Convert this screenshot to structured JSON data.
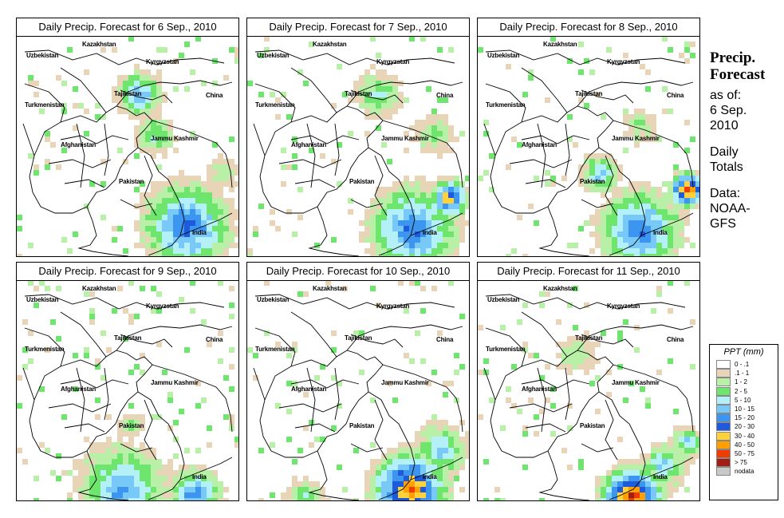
{
  "panels": [
    {
      "title": "Daily Precip. Forecast for  6 Sep., 2010",
      "day": 0
    },
    {
      "title": "Daily Precip. Forecast for  7 Sep., 2010",
      "day": 1
    },
    {
      "title": "Daily Precip. Forecast for  8 Sep., 2010",
      "day": 2
    },
    {
      "title": "Daily Precip. Forecast for  9 Sep., 2010",
      "day": 3
    },
    {
      "title": "Daily Precip. Forecast for  10 Sep., 2010",
      "day": 4
    },
    {
      "title": "Daily Precip. Forecast for  11 Sep., 2010",
      "day": 5
    }
  ],
  "map_labels": {
    "kazakhstan": "Kazakhstan",
    "uzbekistan": "Uzbekistan",
    "kyrgyzstan": "Kyrgyzstan",
    "tajikistan": "Tajikistan",
    "china": "China",
    "turkmenistan": "Turkmenistan",
    "afghanistan": "Afghanistan",
    "jammu_kashmir": "Jammu Kashmir",
    "pakistan": "Pakistan",
    "india": "India"
  },
  "side": {
    "heading1": "Precip.",
    "heading2": "Forecast",
    "asof1": "as of:",
    "asof2": "6 Sep.",
    "asof3": "2010",
    "daily1": "Daily",
    "daily2": "Totals",
    "data1": "Data:",
    "data2": "NOAA-",
    "data3": "GFS"
  },
  "legend": {
    "title": "PPT (mm)",
    "items": [
      {
        "label": "0 - .1",
        "color": "#ffffff"
      },
      {
        "label": ".1 - 1",
        "color": "#e8d5b7"
      },
      {
        "label": "1 - 2",
        "color": "#b8f0a8"
      },
      {
        "label": "2 - 5",
        "color": "#6ee66e"
      },
      {
        "label": "5 - 10",
        "color": "#b4f0f8"
      },
      {
        "label": "10 - 15",
        "color": "#78c8f8"
      },
      {
        "label": "15 - 20",
        "color": "#3c96f0"
      },
      {
        "label": "20 - 30",
        "color": "#1e5adc"
      },
      {
        "label": "30 - 40",
        "color": "#ffd23c"
      },
      {
        "label": "40 - 50",
        "color": "#ffa000"
      },
      {
        "label": "50 - 75",
        "color": "#f03c00"
      },
      {
        "label": "> 75",
        "color": "#a01e14"
      },
      {
        "label": "nodata",
        "color": "#c8c8c8"
      }
    ]
  }
}
